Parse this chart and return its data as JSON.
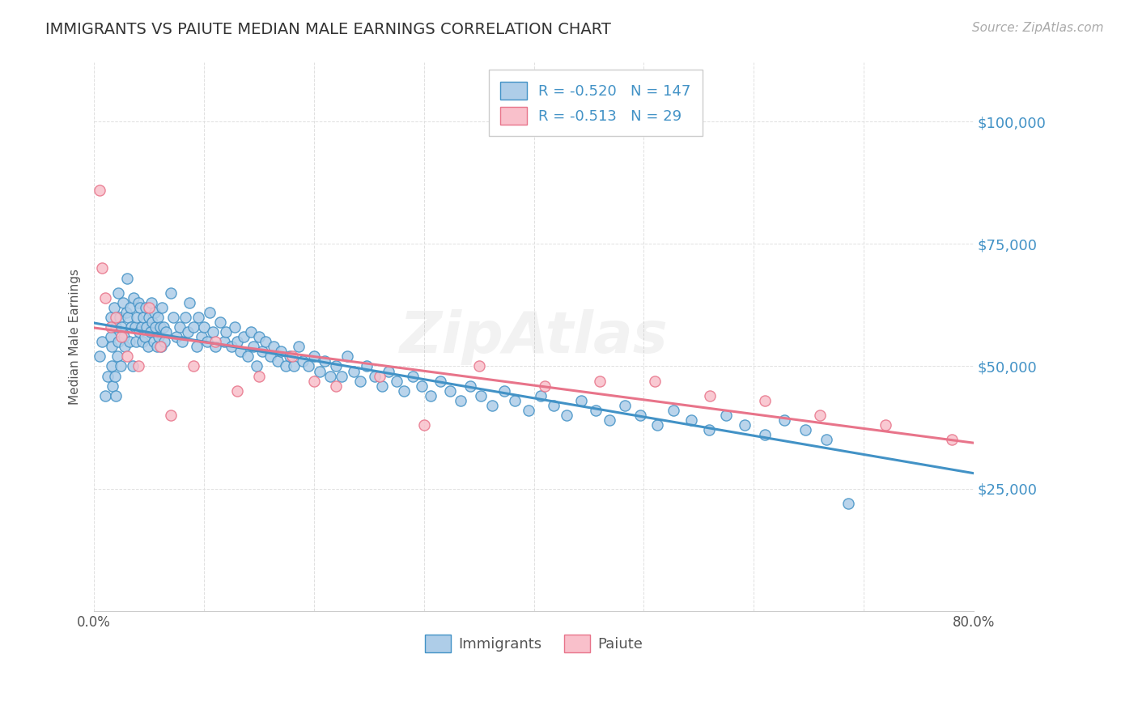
{
  "title": "IMMIGRANTS VS PAIUTE MEDIAN MALE EARNINGS CORRELATION CHART",
  "source": "Source: ZipAtlas.com",
  "ylabel": "Median Male Earnings",
  "ytick_labels": [
    "$25,000",
    "$50,000",
    "$75,000",
    "$100,000"
  ],
  "ytick_values": [
    25000,
    50000,
    75000,
    100000
  ],
  "ymin": 0,
  "ymax": 112000,
  "xmin": 0.0,
  "xmax": 0.8,
  "legend_label1": "Immigrants",
  "legend_label2": "Paiute",
  "R1": -0.52,
  "N1": 147,
  "R2": -0.513,
  "N2": 29,
  "color_blue": "#aecde8",
  "color_pink": "#f9c0cb",
  "color_line_blue": "#4292c6",
  "color_line_pink": "#e8748a",
  "color_title": "#333333",
  "color_source": "#aaaaaa",
  "color_axis_label": "#555555",
  "color_ytick": "#4292c6",
  "background_color": "#ffffff",
  "grid_color": "#e0e0e0",
  "immigrants_x": [
    0.005,
    0.007,
    0.01,
    0.012,
    0.015,
    0.015,
    0.016,
    0.016,
    0.017,
    0.018,
    0.019,
    0.02,
    0.02,
    0.021,
    0.022,
    0.022,
    0.023,
    0.024,
    0.025,
    0.026,
    0.027,
    0.028,
    0.029,
    0.03,
    0.031,
    0.032,
    0.033,
    0.034,
    0.035,
    0.036,
    0.037,
    0.038,
    0.039,
    0.04,
    0.041,
    0.042,
    0.043,
    0.044,
    0.045,
    0.046,
    0.047,
    0.048,
    0.049,
    0.05,
    0.051,
    0.052,
    0.053,
    0.054,
    0.055,
    0.056,
    0.057,
    0.058,
    0.059,
    0.06,
    0.061,
    0.062,
    0.063,
    0.064,
    0.065,
    0.07,
    0.072,
    0.075,
    0.078,
    0.08,
    0.083,
    0.085,
    0.087,
    0.09,
    0.093,
    0.095,
    0.098,
    0.1,
    0.103,
    0.105,
    0.108,
    0.11,
    0.115,
    0.118,
    0.12,
    0.125,
    0.128,
    0.13,
    0.133,
    0.136,
    0.14,
    0.143,
    0.145,
    0.148,
    0.15,
    0.153,
    0.156,
    0.16,
    0.163,
    0.167,
    0.17,
    0.174,
    0.178,
    0.182,
    0.186,
    0.19,
    0.195,
    0.2,
    0.205,
    0.21,
    0.215,
    0.22,
    0.225,
    0.23,
    0.236,
    0.242,
    0.248,
    0.255,
    0.262,
    0.268,
    0.275,
    0.282,
    0.29,
    0.298,
    0.306,
    0.315,
    0.324,
    0.333,
    0.342,
    0.352,
    0.362,
    0.373,
    0.383,
    0.395,
    0.406,
    0.418,
    0.43,
    0.443,
    0.456,
    0.469,
    0.483,
    0.497,
    0.512,
    0.527,
    0.543,
    0.559,
    0.575,
    0.592,
    0.61,
    0.628,
    0.647,
    0.666,
    0.686
  ],
  "immigrants_y": [
    52000,
    55000,
    44000,
    48000,
    60000,
    56000,
    50000,
    54000,
    46000,
    62000,
    48000,
    58000,
    44000,
    52000,
    65000,
    55000,
    60000,
    50000,
    58000,
    63000,
    56000,
    54000,
    61000,
    68000,
    60000,
    55000,
    62000,
    58000,
    50000,
    64000,
    58000,
    55000,
    60000,
    63000,
    57000,
    62000,
    58000,
    55000,
    60000,
    56000,
    62000,
    58000,
    54000,
    60000,
    57000,
    63000,
    59000,
    55000,
    61000,
    58000,
    54000,
    60000,
    56000,
    58000,
    54000,
    62000,
    58000,
    55000,
    57000,
    65000,
    60000,
    56000,
    58000,
    55000,
    60000,
    57000,
    63000,
    58000,
    54000,
    60000,
    56000,
    58000,
    55000,
    61000,
    57000,
    54000,
    59000,
    55000,
    57000,
    54000,
    58000,
    55000,
    53000,
    56000,
    52000,
    57000,
    54000,
    50000,
    56000,
    53000,
    55000,
    52000,
    54000,
    51000,
    53000,
    50000,
    52000,
    50000,
    54000,
    51000,
    50000,
    52000,
    49000,
    51000,
    48000,
    50000,
    48000,
    52000,
    49000,
    47000,
    50000,
    48000,
    46000,
    49000,
    47000,
    45000,
    48000,
    46000,
    44000,
    47000,
    45000,
    43000,
    46000,
    44000,
    42000,
    45000,
    43000,
    41000,
    44000,
    42000,
    40000,
    43000,
    41000,
    39000,
    42000,
    40000,
    38000,
    41000,
    39000,
    37000,
    40000,
    38000,
    36000,
    39000,
    37000,
    35000,
    22000
  ],
  "paiute_x": [
    0.005,
    0.007,
    0.01,
    0.015,
    0.02,
    0.025,
    0.03,
    0.04,
    0.05,
    0.06,
    0.07,
    0.09,
    0.11,
    0.13,
    0.15,
    0.18,
    0.2,
    0.22,
    0.26,
    0.3,
    0.35,
    0.41,
    0.46,
    0.51,
    0.56,
    0.61,
    0.66,
    0.72,
    0.78
  ],
  "paiute_y": [
    86000,
    70000,
    64000,
    58000,
    60000,
    56000,
    52000,
    50000,
    62000,
    54000,
    40000,
    50000,
    55000,
    45000,
    48000,
    52000,
    47000,
    46000,
    48000,
    38000,
    50000,
    46000,
    47000,
    47000,
    44000,
    43000,
    40000,
    38000,
    35000
  ]
}
